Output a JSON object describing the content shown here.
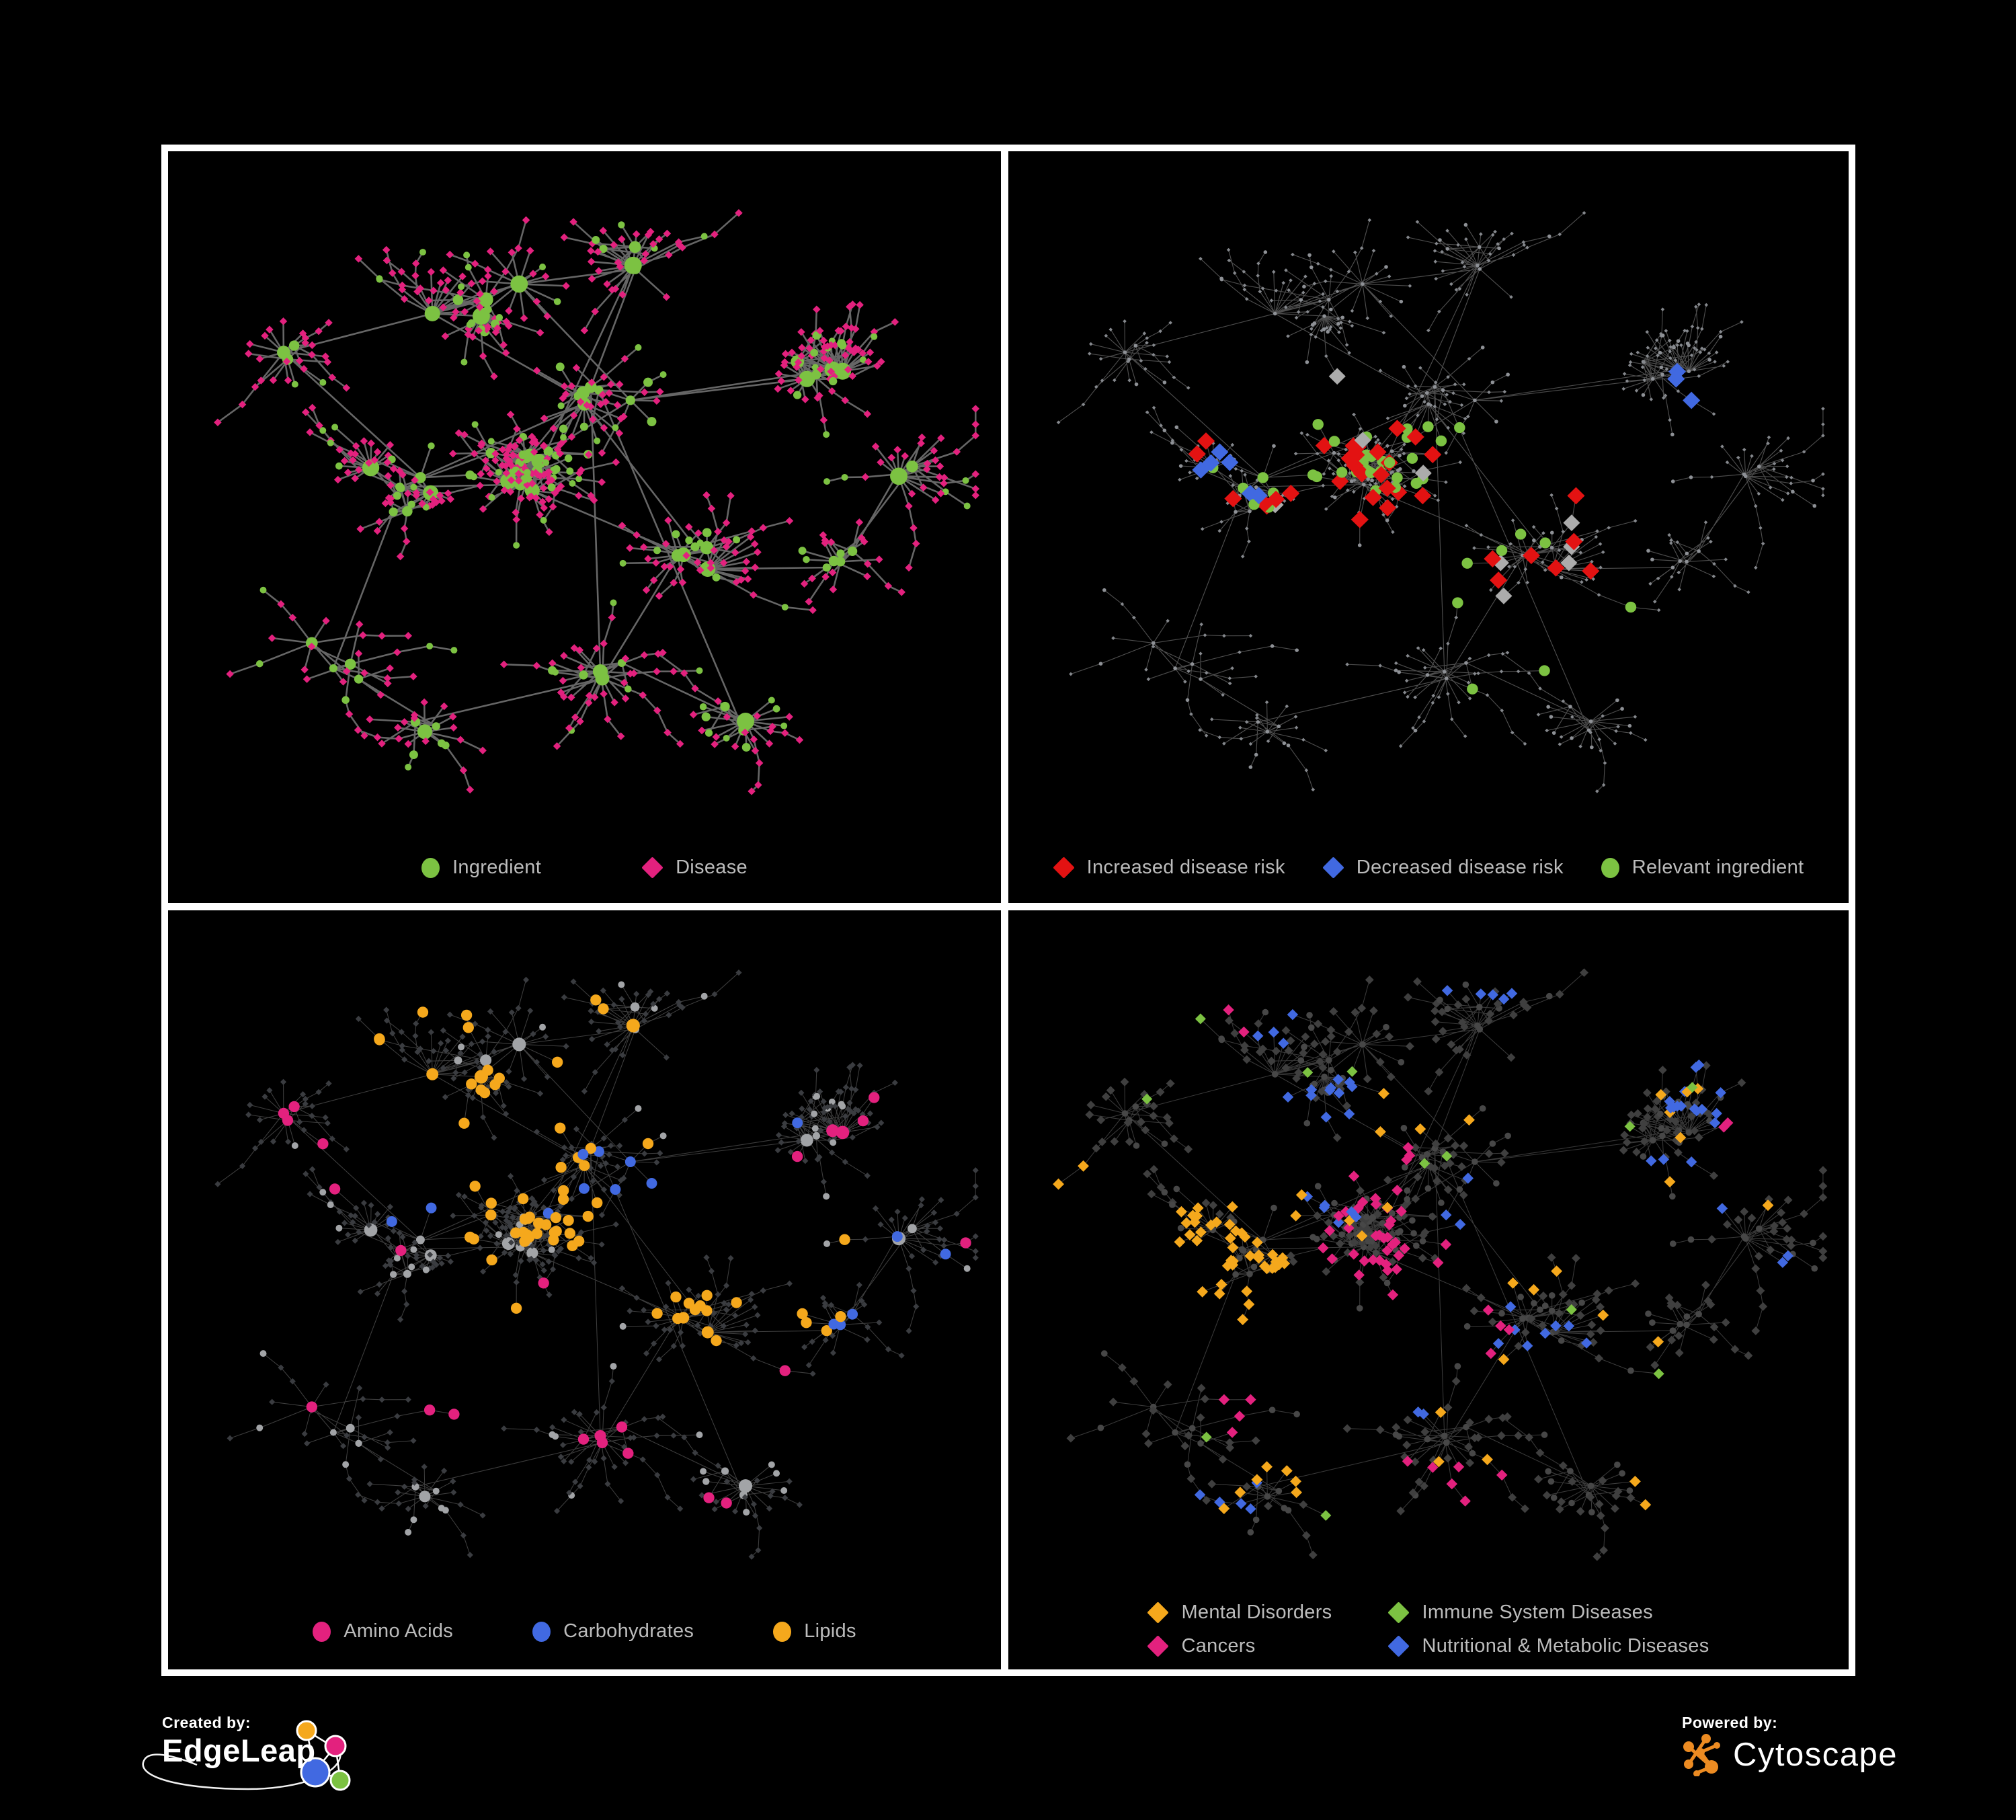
{
  "figure": {
    "background": "#000000",
    "frame_color": "#ffffff",
    "description": "Four-panel ingredient-disease network figure"
  },
  "panels": [
    {
      "id": "ingredient-disease",
      "legend_rows": [
        [
          {
            "shape": "circle",
            "color": "#7CC242",
            "label": "Ingredient"
          },
          {
            "shape": "diamond",
            "color": "#E3217E",
            "label": "Disease"
          }
        ]
      ],
      "style": {
        "seed": 5,
        "edge": {
          "color": "#6C6C6C",
          "width": 2.6,
          "opacity": 0.95
        },
        "circle": {
          "fill": "#7CC242",
          "mode": "scaled",
          "scale": 1.0,
          "min": 5
        },
        "diamond": {
          "fill": "#E3217E",
          "mode": "fixed",
          "size": 5.8
        },
        "highlights": []
      }
    },
    {
      "id": "disease-risk",
      "legend_rows": [
        [
          {
            "shape": "diamond",
            "color": "#E31212",
            "label": "Increased disease risk"
          },
          {
            "shape": "diamond",
            "color": "#4169E1",
            "label": "Decreased disease risk"
          },
          {
            "shape": "circle",
            "color": "#7CC242",
            "label": "Relevant ingredient"
          }
        ]
      ],
      "style": {
        "seed": 11,
        "edge": {
          "color": "#606060",
          "width": 1.15,
          "opacity": 0.8
        },
        "circle": {
          "fill": "#8E9196",
          "mode": "fixed",
          "size": 2.8
        },
        "diamond": {
          "fill": "#85888D",
          "mode": "fixed",
          "size": 2.8
        },
        "highlights": [
          {
            "shape": "diamond",
            "color": "#E31212",
            "size": 13,
            "count": 34,
            "regions": [
              [
                0.44,
                0.55,
                0.14
              ],
              [
                0.3,
                0.47,
                0.09
              ],
              [
                0.62,
                0.58,
                0.12
              ],
              [
                0.33,
                0.36,
                0.06
              ],
              [
                0.74,
                0.84,
                0.09
              ],
              [
                0.15,
                0.52,
                0.05
              ]
            ]
          },
          {
            "shape": "diamond",
            "color": "#4169E1",
            "size": 13,
            "count": 9,
            "regions": [
              [
                0.25,
                0.5,
                0.08
              ],
              [
                0.83,
                0.35,
                0.05
              ]
            ]
          },
          {
            "shape": "diamond",
            "color": "#ACACAC",
            "size": 12.5,
            "count": 9,
            "regions": [
              [
                0.42,
                0.52,
                0.2
              ],
              [
                0.27,
                0.45,
                0.1
              ],
              [
                0.6,
                0.62,
                0.1
              ]
            ]
          },
          {
            "shape": "circle",
            "color": "#7CC242",
            "size": 8.2,
            "count": 40,
            "regions": [
              [
                0.44,
                0.5,
                0.13
              ],
              [
                0.3,
                0.45,
                0.1
              ],
              [
                0.55,
                0.62,
                0.12
              ],
              [
                0.6,
                0.78,
                0.08
              ],
              [
                0.33,
                0.62,
                0.08
              ],
              [
                0.8,
                0.72,
                0.08
              ],
              [
                0.12,
                0.55,
                0.05
              ],
              [
                0.27,
                0.35,
                0.06
              ],
              [
                0.87,
                0.42,
                0.06
              ]
            ]
          }
        ]
      }
    },
    {
      "id": "nutrient-classes",
      "legend_rows": [
        [
          {
            "shape": "circle",
            "color": "#E3217E",
            "label": "Amino Acids"
          },
          {
            "shape": "circle",
            "color": "#4169E1",
            "label": "Carbohydrates"
          },
          {
            "shape": "circle",
            "color": "#F5A81C",
            "label": "Lipids"
          }
        ]
      ],
      "style": {
        "seed": 22,
        "edge": {
          "color": "#9B9B9B",
          "width": 1.05,
          "opacity": 0.4
        },
        "circle": {
          "fill": "#A2A4A7",
          "mode": "scaled",
          "scale": 0.78,
          "min": 5
        },
        "diamond": {
          "fill": "#3A3C40",
          "mode": "fixed",
          "size": 4.6
        },
        "highlights": [
          {
            "shape": "circle",
            "color": "#F5A81C",
            "size": 8.2,
            "count": 72,
            "regions": [
              [
                0.52,
                0.38,
                0.1
              ],
              [
                0.44,
                0.5,
                0.13
              ],
              [
                0.37,
                0.2,
                0.13
              ],
              [
                0.33,
                0.33,
                0.08
              ],
              [
                0.63,
                0.63,
                0.09
              ],
              [
                0.75,
                0.56,
                0.1
              ],
              [
                0.3,
                0.66,
                0.06
              ],
              [
                0.52,
                0.2,
                0.08
              ]
            ]
          },
          {
            "shape": "circle",
            "color": "#4169E1",
            "size": 8,
            "count": 15,
            "regions": [
              [
                0.5,
                0.38,
                0.09
              ],
              [
                0.33,
                0.08,
                0.08
              ],
              [
                0.78,
                0.6,
                0.06
              ],
              [
                0.42,
                0.3,
                0.06
              ]
            ]
          },
          {
            "shape": "circle",
            "color": "#E3217E",
            "size": 8.2,
            "count": 24,
            "regions": [
              [
                0.2,
                0.27,
                0.1
              ],
              [
                0.33,
                0.77,
                0.1
              ],
              [
                0.73,
                0.75,
                0.1
              ],
              [
                0.55,
                0.85,
                0.08
              ],
              [
                0.88,
                0.33,
                0.07
              ],
              [
                0.6,
                0.05,
                0.05
              ],
              [
                0.17,
                0.6,
                0.05
              ],
              [
                0.72,
                0.35,
                0.05
              ]
            ]
          }
        ]
      }
    },
    {
      "id": "disease-classes",
      "legend_rows": [
        [
          {
            "shape": "diamond",
            "color": "#F5A81C",
            "label": "Mental Disorders"
          },
          {
            "shape": "diamond",
            "color": "#7CC242",
            "label": "Immune System Diseases"
          }
        ],
        [
          {
            "shape": "diamond",
            "color": "#E3217E",
            "label": "Cancers"
          },
          {
            "shape": "diamond",
            "color": "#4169E1",
            "label": "Nutritional & Metabolic Diseases"
          }
        ]
      ],
      "style": {
        "seed": 33,
        "edge": {
          "color": "#8A8A8A",
          "width": 1.05,
          "opacity": 0.42
        },
        "circle": {
          "fill": "#474747",
          "mode": "fixed",
          "size": 4.8
        },
        "diamond": {
          "fill": "#3F3F3F",
          "mode": "fixed",
          "size": 6.4
        },
        "highlights": [
          {
            "shape": "diamond",
            "color": "#F5A81C",
            "size": 8.4,
            "count": 78,
            "regions": [
              [
                0.24,
                0.56,
                0.09
              ],
              [
                0.29,
                0.63,
                0.08
              ],
              [
                0.19,
                0.5,
                0.06
              ],
              [
                0.3,
                0.44,
                0.05
              ],
              [
                0.12,
                0.6,
                0.05
              ],
              [
                0.08,
                0.4,
                0.04
              ],
              [
                0.46,
                0.3,
                0.05
              ],
              [
                0.33,
                0.85,
                0.05
              ],
              [
                0.62,
                0.55,
                0.04
              ]
            ]
          },
          {
            "shape": "diamond",
            "color": "#E3217E",
            "size": 8.2,
            "count": 58,
            "regions": [
              [
                0.47,
                0.58,
                0.09
              ],
              [
                0.42,
                0.5,
                0.07
              ],
              [
                0.53,
                0.66,
                0.08
              ],
              [
                0.56,
                0.53,
                0.06
              ],
              [
                0.9,
                0.32,
                0.06
              ],
              [
                0.52,
                0.9,
                0.08
              ],
              [
                0.3,
                0.77,
                0.06
              ],
              [
                0.28,
                0.14,
                0.04
              ],
              [
                0.44,
                0.38,
                0.05
              ]
            ]
          },
          {
            "shape": "diamond",
            "color": "#4169E1",
            "size": 8.2,
            "count": 64,
            "regions": [
              [
                0.63,
                0.66,
                0.07
              ],
              [
                0.66,
                0.72,
                0.06
              ],
              [
                0.36,
                0.4,
                0.08
              ],
              [
                0.32,
                0.1,
                0.09
              ],
              [
                0.56,
                0.06,
                0.07
              ],
              [
                0.86,
                0.24,
                0.08
              ],
              [
                0.8,
                0.44,
                0.07
              ],
              [
                0.37,
                0.3,
                0.06
              ],
              [
                0.15,
                0.13,
                0.06
              ],
              [
                0.52,
                0.43,
                0.05
              ],
              [
                0.26,
                0.92,
                0.05
              ],
              [
                0.95,
                0.55,
                0.04
              ],
              [
                0.47,
                0.74,
                0.05
              ]
            ]
          },
          {
            "shape": "diamond",
            "color": "#7CC242",
            "size": 8,
            "count": 12,
            "regions": null
          }
        ]
      }
    }
  ],
  "network": {
    "layout_seed": 9,
    "clusters": [
      [
        0.42,
        0.47,
        0.075,
        12
      ],
      [
        0.27,
        0.52,
        0.06,
        8
      ],
      [
        0.52,
        0.36,
        0.05,
        6
      ],
      [
        0.36,
        0.22,
        0.07,
        5
      ],
      [
        0.56,
        0.13,
        0.06,
        4
      ],
      [
        0.64,
        0.62,
        0.05,
        5
      ],
      [
        0.52,
        0.8,
        0.05,
        4
      ],
      [
        0.8,
        0.33,
        0.07,
        5
      ],
      [
        0.82,
        0.63,
        0.06,
        5
      ],
      [
        0.18,
        0.78,
        0.06,
        4
      ],
      [
        0.3,
        0.9,
        0.05,
        3
      ],
      [
        0.13,
        0.3,
        0.05,
        3
      ],
      [
        0.68,
        0.87,
        0.05,
        3
      ],
      [
        0.9,
        0.5,
        0.04,
        3
      ]
    ],
    "leaf_min": 2,
    "leaf_max": 15,
    "twig_prob": 0.22,
    "leaf_circle_prob": 0.2,
    "extra_edge_prob": 0.35
  },
  "footer": {
    "created_by": "Created by:",
    "created_brand": "EdgeLeap",
    "powered_by": "Powered by:",
    "powered_brand": "Cytoscape",
    "edgeleap_node_colors": [
      "#F5A81C",
      "#E3217E",
      "#4169E1",
      "#7CC242"
    ],
    "cytoscape_color": "#EC8B22"
  }
}
